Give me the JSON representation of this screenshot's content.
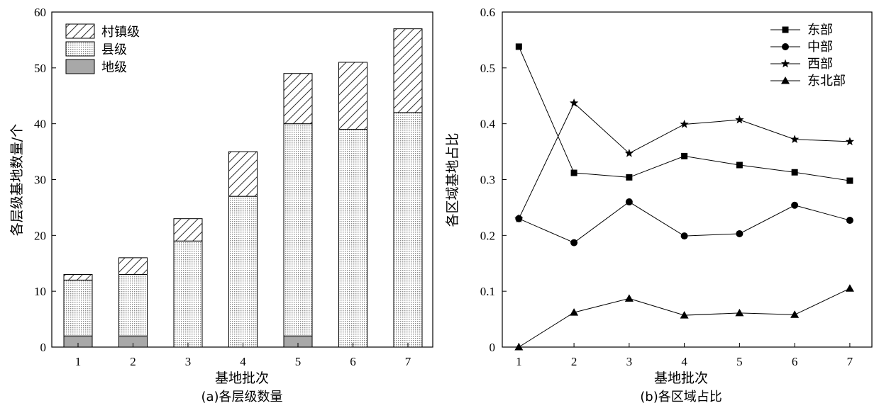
{
  "chart_data": [
    {
      "type": "bar",
      "stacked": true,
      "caption": "(a)各层级数量",
      "xlabel": "基地批次",
      "ylabel": "各层级基地数量/个",
      "ylim": [
        0,
        60
      ],
      "yticks": [
        0,
        10,
        20,
        30,
        40,
        50,
        60
      ],
      "categories": [
        "1",
        "2",
        "3",
        "4",
        "5",
        "6",
        "7"
      ],
      "series": [
        {
          "name": "地级",
          "values": [
            2,
            2,
            0,
            0,
            2,
            0,
            0
          ],
          "pattern": "solid-gray"
        },
        {
          "name": "县级",
          "values": [
            10,
            11,
            19,
            27,
            38,
            39,
            42
          ],
          "pattern": "dots"
        },
        {
          "name": "村镇级",
          "values": [
            1,
            3,
            4,
            8,
            9,
            12,
            15
          ],
          "pattern": "hatch"
        }
      ],
      "legend_order": [
        "村镇级",
        "县级",
        "地级"
      ],
      "legend_position": "top-left",
      "grid": false
    },
    {
      "type": "line",
      "caption": "(b)各区域占比",
      "xlabel": "基地批次",
      "ylabel": "各区域基地占比",
      "xlim": [
        0.7,
        7.4
      ],
      "ylim": [
        0,
        0.6
      ],
      "yticks": [
        "0",
        "0.1",
        "0.2",
        "0.3",
        "0.4",
        "0.5",
        "0.6"
      ],
      "x": [
        1,
        2,
        3,
        4,
        5,
        6,
        7
      ],
      "series": [
        {
          "name": "东部",
          "marker": "square",
          "values": [
            0.538,
            0.312,
            0.304,
            0.342,
            0.326,
            0.313,
            0.298
          ]
        },
        {
          "name": "中部",
          "marker": "circle",
          "values": [
            0.23,
            0.187,
            0.26,
            0.199,
            0.203,
            0.254,
            0.227
          ]
        },
        {
          "name": "西部",
          "marker": "star",
          "values": [
            0.23,
            0.437,
            0.347,
            0.399,
            0.407,
            0.372,
            0.368
          ]
        },
        {
          "name": "东北部",
          "marker": "triangle",
          "values": [
            0.0,
            0.062,
            0.087,
            0.057,
            0.061,
            0.058,
            0.105
          ]
        }
      ],
      "legend_position": "top-right",
      "grid": false
    }
  ]
}
